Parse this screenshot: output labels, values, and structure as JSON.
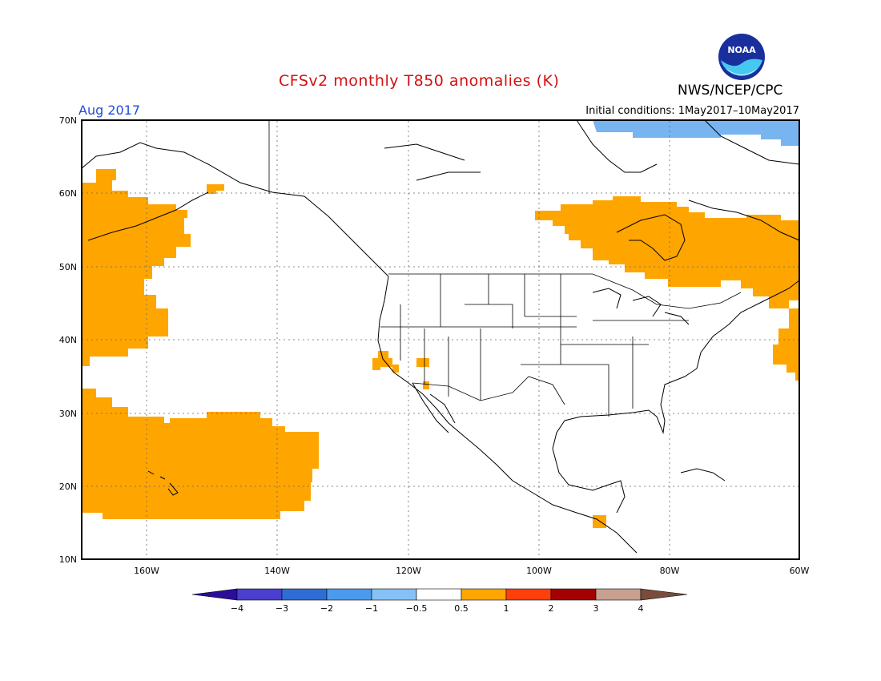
{
  "header": {
    "title": "CFSv2 monthly T850 anomalies (K)",
    "agency": "NWS/NCEP/CPC",
    "month": "Aug 2017",
    "initial_conditions": "Initial conditions: 1May2017–10May2017",
    "logo_text": "NOAA"
  },
  "map": {
    "lat_labels": [
      "70N",
      "60N",
      "50N",
      "40N",
      "30N",
      "20N",
      "10N"
    ],
    "lon_labels": [
      "160W",
      "140W",
      "120W",
      "100W",
      "80W",
      "60W"
    ],
    "lat_range": [
      10,
      70
    ],
    "lon_range": [
      -170,
      -60
    ]
  },
  "colorbar": {
    "labels": [
      "-4",
      "-3",
      "-2",
      "-1",
      "-0.5",
      "0.5",
      "1",
      "2",
      "3",
      "4"
    ],
    "colors": [
      "#2a0e9a",
      "#4a3fcf",
      "#2f6dd6",
      "#4b9aee",
      "#86c1f5",
      "#ffffff",
      "#ffa500",
      "#ff3f0a",
      "#a50000",
      "#c8a090",
      "#7a4c3c"
    ]
  },
  "colors": {
    "positive_anomaly": "#ffa500",
    "negative_anomaly": "#78b4f0",
    "title": "#d41010",
    "month": "#1f4fd8"
  }
}
